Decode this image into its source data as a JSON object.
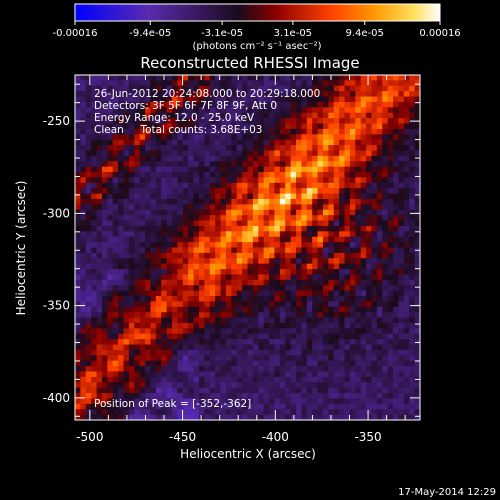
{
  "chart_data": {
    "type": "heatmap",
    "title": "Reconstructed RHESSI Image",
    "xlabel": "Heliocentric X (arcsec)",
    "ylabel": "Heliocentric Y (arcsec)",
    "xlim": [
      -508,
      -322
    ],
    "ylim": [
      -412,
      -225
    ],
    "x_ticks": [
      -500,
      -450,
      -400,
      -350
    ],
    "y_ticks": [
      -250,
      -300,
      -350,
      -400
    ],
    "x_tick_labels": [
      "-500",
      "-450",
      "-400",
      "-350"
    ],
    "y_tick_labels": [
      "-250",
      "-300",
      "-350",
      "-400"
    ],
    "colorbar": {
      "min": -0.00016,
      "max": 0.00016,
      "ticks": [
        -0.00016,
        -9.4e-05,
        -3.1e-05,
        3.1e-05,
        9.4e-05,
        0.00016
      ],
      "tick_labels": [
        "-0.00016",
        "-9.4e-05",
        "-3.1e-05",
        "3.1e-05",
        "9.4e-05",
        "0.00016"
      ],
      "units_label": "(photons cm⁻² s⁻¹ asec⁻²)",
      "colors": [
        "#0000ff",
        "#5a2bb0",
        "#1a0a1a",
        "#8b0000",
        "#ff4000",
        "#ff9900",
        "#ffe060",
        "#ffffff"
      ]
    },
    "annotations": [
      "26-Jun-2012 20:24:08.000 to 20:29:18.000",
      "Detectors: 3F 5F 6F 7F 8F 9F, Att 0",
      "Energy Range: 12.0 - 25.0 keV",
      "Clean     Total counts: 3.68E+03"
    ],
    "peak_label": "Position of Peak = [-352,-362]",
    "peak": [
      -352,
      -362
    ],
    "emission_axis": "diagonal band from lower-left to upper-right"
  },
  "footer": {
    "timestamp": "17-May-2014 12:29"
  }
}
